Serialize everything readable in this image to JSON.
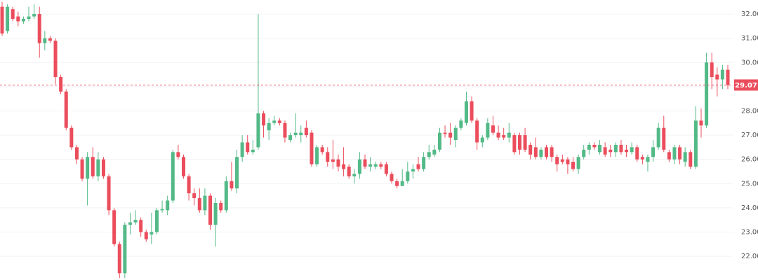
{
  "chart_data": {
    "type": "candlestick",
    "up_color": "#53b987",
    "down_color": "#eb4d5c",
    "grid": true,
    "ylim": [
      21.02,
      32.58
    ],
    "yticks": [
      {
        "value": 22,
        "label": "22.00"
      },
      {
        "value": 23,
        "label": "23.00"
      },
      {
        "value": 24,
        "label": "24.00"
      },
      {
        "value": 25,
        "label": "25.00"
      },
      {
        "value": 26,
        "label": "26.00"
      },
      {
        "value": 27,
        "label": "27.00"
      },
      {
        "value": 28,
        "label": "28.00"
      },
      {
        "value": 29,
        "label": "29.00"
      },
      {
        "value": 30,
        "label": "30.00"
      },
      {
        "value": 31,
        "label": "31.00"
      },
      {
        "value": 32,
        "label": "32.00"
      }
    ],
    "last_price": 29.07,
    "open": [
      32.3,
      31.3,
      32.2,
      31.9,
      31.7,
      31.8,
      31.9,
      32.0,
      30.8,
      31.0,
      30.9,
      29.4,
      28.8,
      27.3,
      26.5,
      26.0,
      25.2,
      26.1,
      25.3,
      26.0,
      25.3,
      23.9,
      22.5,
      21.3,
      23.3,
      23.4,
      23.5,
      23.0,
      22.9,
      23.0,
      23.9,
      23.9,
      24.3,
      26.3,
      26.1,
      25.3,
      24.6,
      24.4,
      23.9,
      24.5,
      23.3,
      24.2,
      23.9,
      25.1,
      24.8,
      26.1,
      26.7,
      26.3,
      26.5,
      27.9,
      27.2,
      27.5,
      27.6,
      27.5,
      26.8,
      27.0,
      27.0,
      27.3,
      27.1,
      25.8,
      26.5,
      26.3,
      26.0,
      26.0,
      25.8,
      25.7,
      25.3,
      25.4,
      26.0,
      25.7,
      25.7,
      25.8,
      25.8,
      25.4,
      25.1,
      24.9,
      25.1,
      25.5,
      25.8,
      25.6,
      26.1,
      26.2,
      26.4,
      27.1,
      27.1,
      26.8,
      27.3,
      27.5,
      28.4,
      27.6,
      26.7,
      26.9,
      27.4,
      27.1,
      27.0,
      26.9,
      27.0,
      27.0,
      27.0,
      26.6,
      26.5,
      26.1,
      26.5,
      26.5,
      26.1,
      26.0,
      26.0,
      25.9,
      25.6,
      26.1,
      26.4,
      26.6,
      26.3,
      26.5,
      26.4,
      26.3,
      26.6,
      26.4,
      26.3,
      26.5,
      26.1,
      25.9,
      26.1,
      26.5,
      27.3,
      26.3,
      26.0,
      26.5,
      25.9,
      26.3,
      25.7,
      27.6,
      27.4,
      30.0,
      29.5,
      29.3,
      29.7
    ],
    "high": [
      32.5,
      32.4,
      32.3,
      32.1,
      31.9,
      32.3,
      32.4,
      32.3,
      31.3,
      31.1,
      31.0,
      29.5,
      28.9,
      27.4,
      26.6,
      26.1,
      26.3,
      26.5,
      26.3,
      26.1,
      25.4,
      24.0,
      22.6,
      23.4,
      23.8,
      23.9,
      23.6,
      23.1,
      23.8,
      24.0,
      24.3,
      24.5,
      26.4,
      26.6,
      26.2,
      25.4,
      24.8,
      24.8,
      24.8,
      24.6,
      24.4,
      24.3,
      25.3,
      25.9,
      26.4,
      27.0,
      27.0,
      26.8,
      32.0,
      28.0,
      27.7,
      27.8,
      27.7,
      27.6,
      27.1,
      27.9,
      27.4,
      27.6,
      27.2,
      26.6,
      26.6,
      26.5,
      26.8,
      26.2,
      26.5,
      25.8,
      25.6,
      26.3,
      26.2,
      26.1,
      25.9,
      25.9,
      25.9,
      25.5,
      25.2,
      25.6,
      25.9,
      25.8,
      26.1,
      26.3,
      26.6,
      26.6,
      27.3,
      27.4,
      27.5,
      27.4,
      27.7,
      28.8,
      28.6,
      27.7,
      27.0,
      27.7,
      27.8,
      27.4,
      27.3,
      27.5,
      27.1,
      27.1,
      27.3,
      26.7,
      26.9,
      26.5,
      26.6,
      26.6,
      26.2,
      26.2,
      26.1,
      26.1,
      26.2,
      26.6,
      26.7,
      26.7,
      26.8,
      26.7,
      26.6,
      26.7,
      26.8,
      26.6,
      26.7,
      26.6,
      26.2,
      26.2,
      26.8,
      27.5,
      27.8,
      26.4,
      26.6,
      26.6,
      26.5,
      26.4,
      28.2,
      28.1,
      30.4,
      30.4,
      29.8,
      29.9,
      29.9
    ],
    "low": [
      31.1,
      31.2,
      31.7,
      31.5,
      31.6,
      31.7,
      31.8,
      30.2,
      30.5,
      30.8,
      29.1,
      28.7,
      27.2,
      26.4,
      25.8,
      25.1,
      24.1,
      25.2,
      25.1,
      25.2,
      23.7,
      22.4,
      21.1,
      21.1,
      22.9,
      23.3,
      22.8,
      22.6,
      22.5,
      22.9,
      23.8,
      23.7,
      24.2,
      26.0,
      25.2,
      24.3,
      24.1,
      23.8,
      23.7,
      23.1,
      22.4,
      23.8,
      23.8,
      24.7,
      24.6,
      25.9,
      26.2,
      26.2,
      26.4,
      26.9,
      26.8,
      27.4,
      27.4,
      26.7,
      26.7,
      26.9,
      26.7,
      26.9,
      25.7,
      25.7,
      26.2,
      25.7,
      25.6,
      25.5,
      25.3,
      25.2,
      25.0,
      25.2,
      25.6,
      25.5,
      25.6,
      25.6,
      25.3,
      25.0,
      24.8,
      24.9,
      25.0,
      25.2,
      25.5,
      25.5,
      26.0,
      26.1,
      26.3,
      26.9,
      26.6,
      26.5,
      27.2,
      27.4,
      27.5,
      26.4,
      26.5,
      26.8,
      27.0,
      26.8,
      26.8,
      26.7,
      26.2,
      26.2,
      26.3,
      26.0,
      26.0,
      26.0,
      26.0,
      25.9,
      25.5,
      25.8,
      25.4,
      25.5,
      25.4,
      26.0,
      26.2,
      26.4,
      26.2,
      26.1,
      26.1,
      26.1,
      26.2,
      26.1,
      26.2,
      25.9,
      25.8,
      25.5,
      25.9,
      26.4,
      26.3,
      25.9,
      25.8,
      25.8,
      25.7,
      25.6,
      25.6,
      26.9,
      27.3,
      28.9,
      28.6,
      28.9,
      28.9
    ],
    "close": [
      31.2,
      32.3,
      31.8,
      31.7,
      31.8,
      31.9,
      32.0,
      30.8,
      31.0,
      30.9,
      29.4,
      28.8,
      27.3,
      26.5,
      26.0,
      25.2,
      26.1,
      25.3,
      26.0,
      25.3,
      23.9,
      22.5,
      21.3,
      23.3,
      23.4,
      23.5,
      23.0,
      22.7,
      23.0,
      23.9,
      23.95,
      24.3,
      26.3,
      26.1,
      25.3,
      24.6,
      24.4,
      23.9,
      24.5,
      23.3,
      24.2,
      23.9,
      25.1,
      24.8,
      26.1,
      26.7,
      26.3,
      26.4,
      27.9,
      27.4,
      27.5,
      27.6,
      27.5,
      26.9,
      27.0,
      27.1,
      27.1,
      27.0,
      25.8,
      26.5,
      26.3,
      25.9,
      25.9,
      25.7,
      25.6,
      25.3,
      25.4,
      26.0,
      25.7,
      25.8,
      25.8,
      25.7,
      25.4,
      25.1,
      24.9,
      25.1,
      25.5,
      25.6,
      25.6,
      26.1,
      26.3,
      26.4,
      27.1,
      27.05,
      26.9,
      27.3,
      27.6,
      28.4,
      27.6,
      26.7,
      26.9,
      27.5,
      27.1,
      26.9,
      26.9,
      27.1,
      26.3,
      26.4,
      26.4,
      26.2,
      26.1,
      26.4,
      26.1,
      26.1,
      25.8,
      25.9,
      25.8,
      25.6,
      26.1,
      26.4,
      26.6,
      26.5,
      26.6,
      26.2,
      26.3,
      26.6,
      26.3,
      26.3,
      26.5,
      26.0,
      26.0,
      26.1,
      26.5,
      27.3,
      26.4,
      26.0,
      26.5,
      26.0,
      26.3,
      25.7,
      27.6,
      27.4,
      30.0,
      29.4,
      29.3,
      29.7,
      29.07
    ]
  }
}
